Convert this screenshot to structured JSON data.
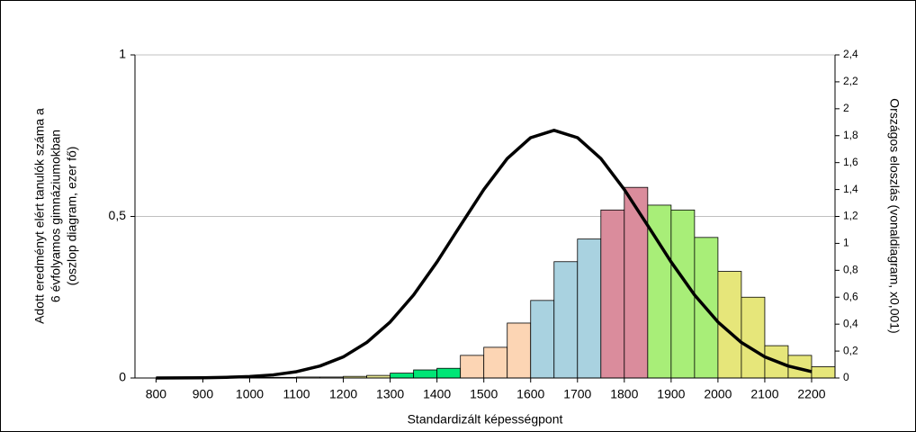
{
  "chart_data": {
    "type": "histogram",
    "y_label": [
      "Adott eredményt elért tanulók száma a",
      "6 évfolyamos gimnáziumokban",
      "(oszlop diagram, ezer fő)"
    ],
    "y2_label": "Országos eloszlás (vonaldiagram, x0,001)",
    "x_label": "Standardizált képességpont",
    "bins": [
      800,
      850,
      900,
      950,
      1000,
      1050,
      1100,
      1150,
      1200,
      1250,
      1300,
      1350,
      1400,
      1450,
      1500,
      1550,
      1600,
      1650,
      1700,
      1750,
      1800,
      1850,
      1900,
      1950,
      2000,
      2050,
      2100,
      2150,
      2200,
      2250
    ],
    "values": [
      0.001,
      0.001,
      0.001,
      0.002,
      0.002,
      0.002,
      0.003,
      0.003,
      0.005,
      0.008,
      0.015,
      0.025,
      0.03,
      0.07,
      0.095,
      0.17,
      0.24,
      0.36,
      0.43,
      0.52,
      0.59,
      0.535,
      0.52,
      0.435,
      0.33,
      0.25,
      0.1,
      0.07,
      0.035
    ],
    "colors": [
      "#e4e4c0",
      "#e4e4c0",
      "#e4e4c0",
      "#e4e4c0",
      "#e4e4c0",
      "#e4e4c0",
      "#e4e4c0",
      "#e4e4c0",
      "#e6e690",
      "#e6e690",
      "#00e676",
      "#00e676",
      "#00e676",
      "#fcd5b4",
      "#fcd5b4",
      "#fcd5b4",
      "#a9d2e0",
      "#a9d2e0",
      "#a9d2e0",
      "#da8c9c",
      "#da8c9c",
      "#a8ee78",
      "#a8ee78",
      "#a8ee78",
      "#e6e67a",
      "#e6e67a",
      "#e6e67a",
      "#e6e67a",
      "#e6e67a"
    ],
    "line": {
      "type": "line",
      "axis": "y2",
      "color": "#000000",
      "x": [
        800,
        850,
        900,
        950,
        1000,
        1050,
        1100,
        1150,
        1200,
        1250,
        1300,
        1350,
        1400,
        1450,
        1500,
        1550,
        1600,
        1650,
        1700,
        1750,
        1800,
        1850,
        1900,
        1950,
        2000,
        2050,
        2100,
        2150,
        2200
      ],
      "values": [
        0.0003,
        0.0008,
        0.002,
        0.005,
        0.011,
        0.023,
        0.047,
        0.089,
        0.157,
        0.264,
        0.416,
        0.617,
        0.862,
        1.133,
        1.4,
        1.63,
        1.785,
        1.84,
        1.785,
        1.63,
        1.4,
        1.133,
        0.862,
        0.617,
        0.416,
        0.264,
        0.157,
        0.089,
        0.047
      ]
    },
    "xlim": [
      755,
      2250
    ],
    "xticks": [
      800,
      900,
      1000,
      1100,
      1200,
      1300,
      1400,
      1500,
      1600,
      1700,
      1800,
      1900,
      2000,
      2100,
      2200
    ],
    "ylim": [
      0,
      1
    ],
    "yticks": [
      0,
      {
        "value": 0.5,
        "label": "0,5"
      },
      1
    ],
    "y2lim": [
      0,
      2.4
    ],
    "y2ticks": [
      0,
      {
        "value": 0.2,
        "label": "0,2"
      },
      {
        "value": 0.4,
        "label": "0,4"
      },
      {
        "value": 0.6,
        "label": "0,6"
      },
      {
        "value": 0.8,
        "label": "0,8"
      },
      1,
      {
        "value": 1.2,
        "label": "1,2"
      },
      {
        "value": 1.4,
        "label": "1,4"
      },
      {
        "value": 1.6,
        "label": "1,6"
      },
      {
        "value": 1.8,
        "label": "1,8"
      },
      2,
      {
        "value": 2.2,
        "label": "2,2"
      },
      {
        "value": 2.4,
        "label": "2,4"
      }
    ],
    "grid": true
  }
}
